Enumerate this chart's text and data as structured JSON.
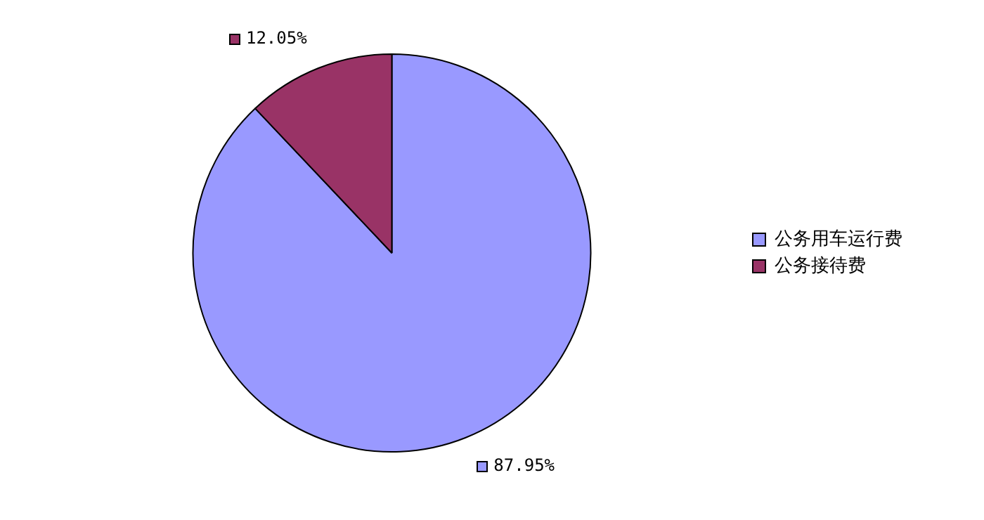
{
  "chart_data": {
    "type": "pie",
    "categories": [
      "公务用车运行费",
      "公务接待费"
    ],
    "values": [
      87.95,
      12.05
    ],
    "colors": [
      "#9999ff",
      "#993366"
    ],
    "value_labels": [
      "87.95%",
      "12.05%"
    ],
    "legend": "right"
  }
}
